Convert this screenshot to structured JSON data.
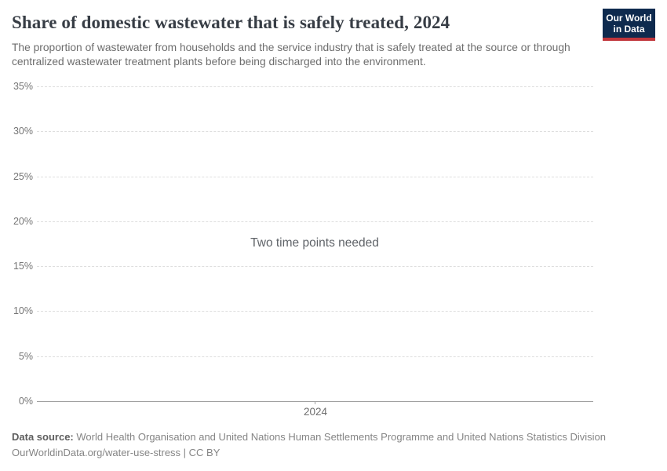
{
  "header": {
    "title": "Share of domestic wastewater that is safely treated, 2024",
    "subtitle": "The proportion of wastewater from households and the service industry that is safely treated at the source or through centralized wastewater treatment plants before being discharged into the environment.",
    "logo": {
      "line1": "Our World",
      "line2": "in Data"
    }
  },
  "chart_data": {
    "type": "line",
    "title": "Share of domestic wastewater that is safely treated, 2024",
    "series": [],
    "message": "Two time points needed",
    "x": {
      "tick_labels": [
        "2024"
      ]
    },
    "y": {
      "min": 0,
      "max": 35,
      "unit": "%",
      "tick_values": [
        35,
        30,
        25,
        20,
        15,
        10,
        5,
        0
      ],
      "tick_labels": [
        "35%",
        "30%",
        "25%",
        "20%",
        "15%",
        "10%",
        "5%",
        "0%"
      ]
    },
    "grid": true,
    "legend_position": "none"
  },
  "footer": {
    "datasource_label": "Data source:",
    "datasource_text": "World Health Organisation and United Nations Human Settlements Programme and United Nations Statistics Division",
    "link_line": "OurWorldinData.org/water-use-stress | CC BY"
  },
  "colors": {
    "logo_background": "#0e2a4e",
    "logo_stripe": "#c0353b",
    "title_text": "#373d45",
    "subtitle_text": "#6d6d6d",
    "gridline": "#dedede",
    "axis_line": "#a1a1a1",
    "tick_label": "#757575",
    "footer_text": "#858585"
  }
}
